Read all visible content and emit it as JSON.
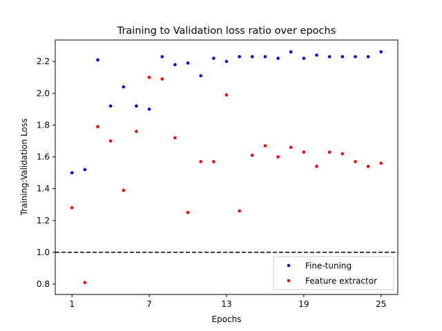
{
  "chart_data": {
    "type": "scatter",
    "title": "Training to Validation loss ratio over epochs",
    "xlabel": "Epochs",
    "ylabel": "Training:Validation Loss",
    "xlim": [
      -0.3,
      26.3
    ],
    "ylim": [
      0.735,
      2.335
    ],
    "xticks": [
      1,
      7,
      13,
      19,
      25
    ],
    "yticks": [
      0.8,
      1.0,
      1.2,
      1.4,
      1.6,
      1.8,
      2.0,
      2.2
    ],
    "ytick_labels": [
      "0.8",
      "1.0",
      "1.2",
      "1.4",
      "1.6",
      "1.8",
      "2.0",
      "2.2"
    ],
    "reference_line": {
      "y": 1.0,
      "style": "dashed",
      "color": "#000000"
    },
    "legend_position": "lower-right",
    "series": [
      {
        "name": "Fine-tuning",
        "color": "#0000ff",
        "x": [
          1,
          2,
          3,
          4,
          5,
          6,
          7,
          8,
          9,
          10,
          11,
          12,
          13,
          14,
          15,
          16,
          17,
          18,
          19,
          20,
          21,
          22,
          23,
          24,
          25
        ],
        "y": [
          1.5,
          1.52,
          2.21,
          1.92,
          2.04,
          1.92,
          1.9,
          2.23,
          2.18,
          2.19,
          2.11,
          2.22,
          2.2,
          2.23,
          2.23,
          2.23,
          2.22,
          2.26,
          2.22,
          2.24,
          2.23,
          2.23,
          2.23,
          2.23,
          2.26
        ]
      },
      {
        "name": "Feature extractor",
        "color": "#ff0000",
        "x": [
          1,
          2,
          3,
          4,
          5,
          6,
          7,
          8,
          9,
          10,
          11,
          12,
          13,
          14,
          15,
          16,
          17,
          18,
          19,
          20,
          21,
          22,
          23,
          24,
          25
        ],
        "y": [
          1.28,
          0.81,
          1.79,
          1.7,
          1.39,
          1.76,
          2.1,
          2.09,
          1.72,
          1.25,
          1.57,
          1.57,
          1.99,
          1.26,
          1.61,
          1.67,
          1.6,
          1.66,
          1.63,
          1.54,
          1.63,
          1.62,
          1.57,
          1.54,
          1.56
        ]
      }
    ]
  }
}
